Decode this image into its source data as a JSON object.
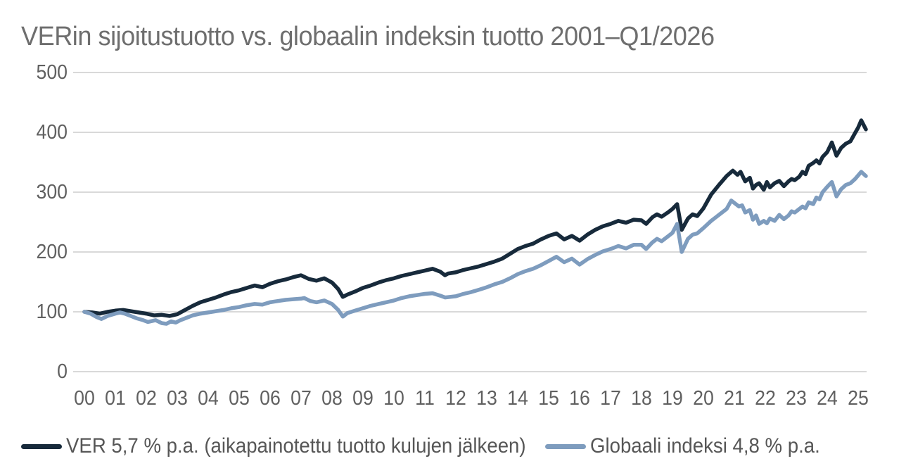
{
  "title": "VERin sijoitustuotto vs. globaalin indeksin tuotto 2001–Q1/2026",
  "colors": {
    "background": "#ffffff",
    "title_text": "#6e6e6e",
    "axis_text": "#606060",
    "gridline": "#d9d9d9",
    "ver_line": "#172a3b",
    "global_line": "#7e9cbe"
  },
  "chart_data": {
    "type": "line",
    "title": "VERin sijoitustuotto vs. globaalin indeksin tuotto 2001–Q1/2026",
    "x_axis": {
      "tick_labels": [
        "00",
        "01",
        "02",
        "03",
        "04",
        "05",
        "06",
        "07",
        "08",
        "09",
        "10",
        "11",
        "12",
        "13",
        "14",
        "15",
        "16",
        "17",
        "18",
        "19",
        "20",
        "21",
        "22",
        "23",
        "24",
        "25"
      ],
      "start_value_index": 100,
      "x_end_years_after_start": 25.25
    },
    "y_axis": {
      "ticks": [
        0,
        100,
        200,
        300,
        400,
        500
      ],
      "range": [
        0,
        500
      ]
    },
    "grid": "horizontal",
    "legend_position": "bottom",
    "series": [
      {
        "name": "VER 5,7 % p.a. (aikapainotettu tuotto kulujen jälkeen)",
        "color": "#172a3b",
        "points": [
          [
            0,
            100
          ],
          [
            0.25,
            99
          ],
          [
            0.5,
            97
          ],
          [
            0.75,
            100
          ],
          [
            1,
            102
          ],
          [
            1.25,
            103
          ],
          [
            1.5,
            101
          ],
          [
            1.75,
            99
          ],
          [
            2,
            97
          ],
          [
            2.25,
            94
          ],
          [
            2.5,
            95
          ],
          [
            2.75,
            93
          ],
          [
            3,
            96
          ],
          [
            3.25,
            103
          ],
          [
            3.5,
            110
          ],
          [
            3.75,
            116
          ],
          [
            4,
            120
          ],
          [
            4.25,
            124
          ],
          [
            4.5,
            129
          ],
          [
            4.75,
            133
          ],
          [
            5,
            136
          ],
          [
            5.25,
            140
          ],
          [
            5.5,
            144
          ],
          [
            5.75,
            141
          ],
          [
            6,
            147
          ],
          [
            6.25,
            151
          ],
          [
            6.5,
            154
          ],
          [
            6.75,
            158
          ],
          [
            7,
            161
          ],
          [
            7.25,
            155
          ],
          [
            7.5,
            152
          ],
          [
            7.75,
            156
          ],
          [
            8,
            149
          ],
          [
            8.2,
            138
          ],
          [
            8.35,
            125
          ],
          [
            8.5,
            129
          ],
          [
            8.75,
            134
          ],
          [
            9,
            140
          ],
          [
            9.25,
            144
          ],
          [
            9.5,
            149
          ],
          [
            9.75,
            153
          ],
          [
            10,
            156
          ],
          [
            10.25,
            160
          ],
          [
            10.5,
            163
          ],
          [
            10.75,
            166
          ],
          [
            11,
            169
          ],
          [
            11.25,
            172
          ],
          [
            11.5,
            167
          ],
          [
            11.65,
            161
          ],
          [
            11.75,
            164
          ],
          [
            12,
            166
          ],
          [
            12.25,
            170
          ],
          [
            12.5,
            173
          ],
          [
            12.75,
            176
          ],
          [
            13,
            180
          ],
          [
            13.25,
            184
          ],
          [
            13.5,
            189
          ],
          [
            13.75,
            197
          ],
          [
            14,
            205
          ],
          [
            14.25,
            210
          ],
          [
            14.5,
            214
          ],
          [
            14.75,
            221
          ],
          [
            15,
            227
          ],
          [
            15.25,
            231
          ],
          [
            15.5,
            221
          ],
          [
            15.75,
            227
          ],
          [
            16,
            219
          ],
          [
            16.25,
            229
          ],
          [
            16.5,
            237
          ],
          [
            16.75,
            243
          ],
          [
            17,
            247
          ],
          [
            17.25,
            252
          ],
          [
            17.5,
            249
          ],
          [
            17.75,
            254
          ],
          [
            18,
            253
          ],
          [
            18.15,
            247
          ],
          [
            18.35,
            258
          ],
          [
            18.5,
            263
          ],
          [
            18.65,
            259
          ],
          [
            18.85,
            266
          ],
          [
            19,
            272
          ],
          [
            19.15,
            280
          ],
          [
            19.3,
            237
          ],
          [
            19.5,
            256
          ],
          [
            19.65,
            263
          ],
          [
            19.8,
            260
          ],
          [
            20,
            273
          ],
          [
            20.25,
            296
          ],
          [
            20.5,
            312
          ],
          [
            20.75,
            327
          ],
          [
            20.95,
            336
          ],
          [
            21.1,
            329
          ],
          [
            21.2,
            334
          ],
          [
            21.35,
            318
          ],
          [
            21.5,
            324
          ],
          [
            21.6,
            306
          ],
          [
            21.7,
            312
          ],
          [
            21.8,
            315
          ],
          [
            21.95,
            304
          ],
          [
            22.05,
            317
          ],
          [
            22.15,
            308
          ],
          [
            22.3,
            315
          ],
          [
            22.45,
            319
          ],
          [
            22.6,
            310
          ],
          [
            22.75,
            318
          ],
          [
            22.85,
            322
          ],
          [
            22.95,
            320
          ],
          [
            23.1,
            326
          ],
          [
            23.2,
            334
          ],
          [
            23.3,
            330
          ],
          [
            23.4,
            344
          ],
          [
            23.55,
            349
          ],
          [
            23.65,
            353
          ],
          [
            23.75,
            348
          ],
          [
            23.85,
            359
          ],
          [
            24,
            367
          ],
          [
            24.15,
            383
          ],
          [
            24.3,
            361
          ],
          [
            24.45,
            374
          ],
          [
            24.6,
            381
          ],
          [
            24.75,
            385
          ],
          [
            24.9,
            399
          ],
          [
            25,
            408
          ],
          [
            25.1,
            420
          ],
          [
            25.25,
            405
          ]
        ]
      },
      {
        "name": "Globaali indeksi 4,8 % p.a.",
        "color": "#7e9cbe",
        "points": [
          [
            0,
            100
          ],
          [
            0.2,
            97
          ],
          [
            0.4,
            91
          ],
          [
            0.55,
            88
          ],
          [
            0.75,
            93
          ],
          [
            1,
            97
          ],
          [
            1.15,
            99
          ],
          [
            1.3,
            97
          ],
          [
            1.5,
            93
          ],
          [
            1.7,
            89
          ],
          [
            1.9,
            86
          ],
          [
            2.05,
            83
          ],
          [
            2.3,
            86
          ],
          [
            2.5,
            81
          ],
          [
            2.65,
            80
          ],
          [
            2.8,
            84
          ],
          [
            2.95,
            82
          ],
          [
            3.1,
            86
          ],
          [
            3.3,
            90
          ],
          [
            3.5,
            94
          ],
          [
            3.75,
            97
          ],
          [
            4,
            99
          ],
          [
            4.25,
            101
          ],
          [
            4.5,
            103
          ],
          [
            4.75,
            106
          ],
          [
            5,
            108
          ],
          [
            5.25,
            111
          ],
          [
            5.5,
            113
          ],
          [
            5.75,
            112
          ],
          [
            6,
            116
          ],
          [
            6.25,
            118
          ],
          [
            6.5,
            120
          ],
          [
            6.75,
            121
          ],
          [
            7,
            122
          ],
          [
            7.1,
            123
          ],
          [
            7.3,
            118
          ],
          [
            7.5,
            116
          ],
          [
            7.75,
            119
          ],
          [
            8,
            113
          ],
          [
            8.2,
            103
          ],
          [
            8.35,
            92
          ],
          [
            8.5,
            98
          ],
          [
            8.75,
            102
          ],
          [
            9,
            106
          ],
          [
            9.25,
            110
          ],
          [
            9.5,
            113
          ],
          [
            9.75,
            116
          ],
          [
            10,
            119
          ],
          [
            10.25,
            123
          ],
          [
            10.5,
            126
          ],
          [
            10.75,
            128
          ],
          [
            11,
            130
          ],
          [
            11.25,
            131
          ],
          [
            11.5,
            127
          ],
          [
            11.65,
            124
          ],
          [
            12,
            126
          ],
          [
            12.25,
            130
          ],
          [
            12.5,
            133
          ],
          [
            12.75,
            137
          ],
          [
            13,
            141
          ],
          [
            13.25,
            146
          ],
          [
            13.5,
            150
          ],
          [
            13.75,
            156
          ],
          [
            14,
            163
          ],
          [
            14.25,
            168
          ],
          [
            14.5,
            172
          ],
          [
            14.75,
            178
          ],
          [
            15,
            185
          ],
          [
            15.25,
            192
          ],
          [
            15.5,
            183
          ],
          [
            15.75,
            189
          ],
          [
            16,
            179
          ],
          [
            16.25,
            188
          ],
          [
            16.5,
            195
          ],
          [
            16.75,
            201
          ],
          [
            17,
            205
          ],
          [
            17.25,
            210
          ],
          [
            17.5,
            206
          ],
          [
            17.75,
            212
          ],
          [
            18,
            212
          ],
          [
            18.15,
            205
          ],
          [
            18.35,
            216
          ],
          [
            18.5,
            222
          ],
          [
            18.65,
            218
          ],
          [
            18.85,
            226
          ],
          [
            19,
            232
          ],
          [
            19.15,
            247
          ],
          [
            19.3,
            200
          ],
          [
            19.5,
            222
          ],
          [
            19.65,
            229
          ],
          [
            19.8,
            231
          ],
          [
            20,
            240
          ],
          [
            20.25,
            252
          ],
          [
            20.5,
            262
          ],
          [
            20.75,
            272
          ],
          [
            20.9,
            286
          ],
          [
            21,
            282
          ],
          [
            21.15,
            276
          ],
          [
            21.25,
            278
          ],
          [
            21.35,
            266
          ],
          [
            21.5,
            270
          ],
          [
            21.6,
            254
          ],
          [
            21.7,
            261
          ],
          [
            21.8,
            247
          ],
          [
            21.95,
            252
          ],
          [
            22.05,
            248
          ],
          [
            22.15,
            256
          ],
          [
            22.3,
            252
          ],
          [
            22.45,
            262
          ],
          [
            22.6,
            255
          ],
          [
            22.75,
            261
          ],
          [
            22.85,
            268
          ],
          [
            22.95,
            266
          ],
          [
            23.1,
            272
          ],
          [
            23.2,
            276
          ],
          [
            23.3,
            273
          ],
          [
            23.4,
            283
          ],
          [
            23.55,
            280
          ],
          [
            23.65,
            291
          ],
          [
            23.75,
            288
          ],
          [
            23.85,
            300
          ],
          [
            24,
            309
          ],
          [
            24.15,
            317
          ],
          [
            24.3,
            293
          ],
          [
            24.45,
            305
          ],
          [
            24.6,
            312
          ],
          [
            24.75,
            315
          ],
          [
            24.9,
            322
          ],
          [
            25,
            328
          ],
          [
            25.1,
            334
          ],
          [
            25.25,
            327
          ]
        ]
      }
    ]
  },
  "legend": {
    "items": [
      {
        "label": "VER 5,7 % p.a. (aikapainotettu tuotto kulujen jälkeen)",
        "color": "#172a3b"
      },
      {
        "label": "Globaali indeksi 4,8 % p.a.",
        "color": "#7e9cbe"
      }
    ]
  }
}
